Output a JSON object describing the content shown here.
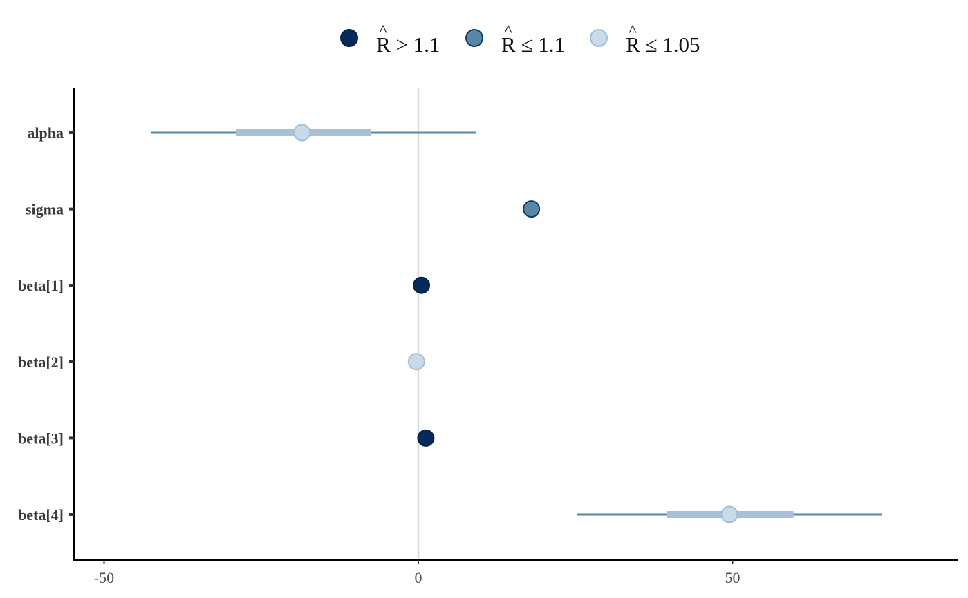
{
  "chart_data": {
    "type": "scatter",
    "title": "",
    "xlabel": "",
    "ylabel": "",
    "xlim": [
      -55,
      86
    ],
    "x_ticks": [
      -50,
      0,
      50
    ],
    "x_tick_labels": [
      "-50",
      "0",
      "50"
    ],
    "reference_line_x": 0,
    "grid": false,
    "legend_position": "top",
    "legend": [
      {
        "key": "high",
        "label": "R > 1.1",
        "hat_char": "^",
        "base": "R",
        "rest": " > 1.1",
        "fill": "#062a5a",
        "stroke": "#0a2146"
      },
      {
        "key": "mid",
        "label": "R ≤ 1.1",
        "hat_char": "^",
        "base": "R",
        "rest": " ≤ 1.1",
        "fill": "#5a87a5",
        "stroke": "#0e3a68"
      },
      {
        "key": "low",
        "label": "R ≤ 1.05",
        "hat_char": "^",
        "base": "R",
        "rest": " ≤ 1.05",
        "fill": "#c9dbe8",
        "stroke": "#a2bed5"
      }
    ],
    "parameters": [
      {
        "name": "alpha",
        "estimate": -18.5,
        "inner": [
          -29,
          -7.5
        ],
        "outer": [
          -42.5,
          9.2
        ],
        "rhat_class": "low"
      },
      {
        "name": "sigma",
        "estimate": 18,
        "inner": null,
        "outer": null,
        "rhat_class": "mid"
      },
      {
        "name": "beta[1]",
        "estimate": 0.5,
        "inner": null,
        "outer": null,
        "rhat_class": "high"
      },
      {
        "name": "beta[2]",
        "estimate": -0.3,
        "inner": null,
        "outer": null,
        "rhat_class": "low"
      },
      {
        "name": "beta[3]",
        "estimate": 1.2,
        "inner": null,
        "outer": null,
        "rhat_class": "high"
      },
      {
        "name": "beta[4]",
        "estimate": 49.5,
        "inner": [
          39.5,
          59.7
        ],
        "outer": [
          25.2,
          73.8
        ],
        "rhat_class": "low"
      }
    ],
    "colors": {
      "outer_interval": "#5a87a5",
      "inner_interval": "#a8c0d8",
      "reference_line": "#d9d9d9",
      "axis": "#000000"
    }
  }
}
